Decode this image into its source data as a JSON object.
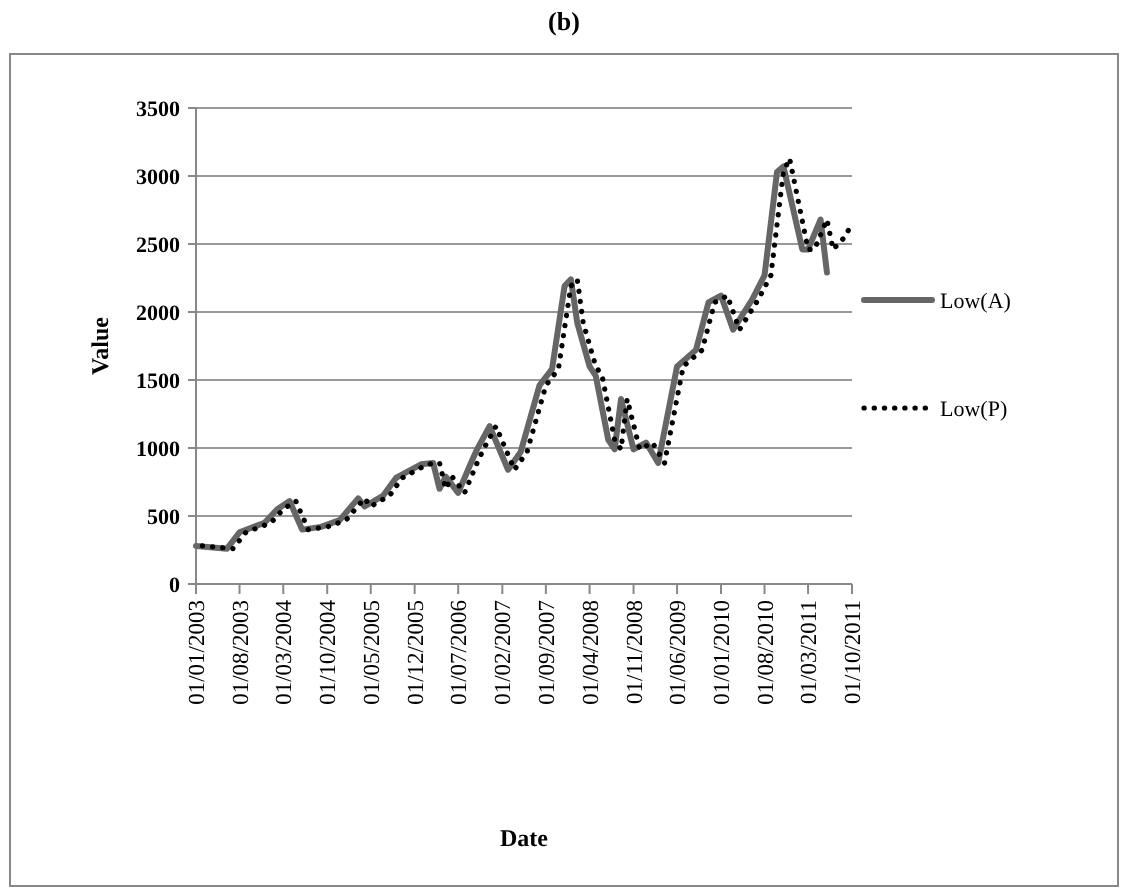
{
  "chart_data": {
    "type": "line",
    "title": "(b)",
    "xlabel": "Date",
    "ylabel": "Value",
    "legend": "right",
    "grid": "y",
    "xlim": [
      "2003-01",
      "2011-10"
    ],
    "xticks": [
      {
        "value": "2003-01",
        "label": "01/01/2003"
      },
      {
        "value": "2003-08",
        "label": "01/08/2003"
      },
      {
        "value": "2004-03",
        "label": "01/03/2004"
      },
      {
        "value": "2004-10",
        "label": "01/10/2004"
      },
      {
        "value": "2005-05",
        "label": "01/05/2005"
      },
      {
        "value": "2005-12",
        "label": "01/12/2005"
      },
      {
        "value": "2006-07",
        "label": "01/07/2006"
      },
      {
        "value": "2007-02",
        "label": "01/02/2007"
      },
      {
        "value": "2007-09",
        "label": "01/09/2007"
      },
      {
        "value": "2008-04",
        "label": "01/04/2008"
      },
      {
        "value": "2008-11",
        "label": "01/11/2008"
      },
      {
        "value": "2009-06",
        "label": "01/06/2009"
      },
      {
        "value": "2010-01",
        "label": "01/01/2010"
      },
      {
        "value": "2010-08",
        "label": "01/08/2010"
      },
      {
        "value": "2011-03",
        "label": "01/03/2011"
      },
      {
        "value": "2011-10",
        "label": "01/10/2011"
      }
    ],
    "ylim": [
      0,
      3500
    ],
    "yticks": [
      0,
      500,
      1000,
      1500,
      2000,
      2500,
      3000,
      3500
    ],
    "series": [
      {
        "name": "Low(A)",
        "color": "#666666",
        "line_style": "solid",
        "x": [
          "2003-01",
          "2003-06",
          "2003-08",
          "2003-12",
          "2004-02",
          "2004-04",
          "2004-06",
          "2004-09",
          "2004-12",
          "2005-03",
          "2005-04",
          "2005-07",
          "2005-09",
          "2006-01",
          "2006-03",
          "2006-04",
          "2006-05",
          "2006-07",
          "2006-09",
          "2006-10",
          "2006-12",
          "2007-03",
          "2007-05",
          "2007-08",
          "2007-10",
          "2007-12",
          "2008-01",
          "2008-02",
          "2008-04",
          "2008-05",
          "2008-07",
          "2008-08",
          "2008-09",
          "2008-11",
          "2009-01",
          "2009-03",
          "2009-06",
          "2009-09",
          "2009-11",
          "2010-01",
          "2010-03",
          "2010-06",
          "2010-08",
          "2010-10",
          "2010-11",
          "2011-02",
          "2011-03",
          "2011-05",
          "2011-06"
        ],
        "values": [
          280,
          260,
          380,
          450,
          550,
          610,
          400,
          420,
          470,
          630,
          570,
          650,
          780,
          880,
          890,
          700,
          790,
          670,
          890,
          990,
          1160,
          840,
          970,
          1460,
          1580,
          2190,
          2240,
          1920,
          1600,
          1530,
          1060,
          990,
          1360,
          990,
          1040,
          890,
          1600,
          1720,
          2070,
          2120,
          1870,
          2090,
          2270,
          3030,
          3070,
          2460,
          2460,
          2680,
          2290
        ]
      },
      {
        "name": "Low(P)",
        "color": "#000000",
        "line_style": "dotted",
        "x": [
          "2003-02",
          "2003-07",
          "2003-09",
          "2004-01",
          "2004-03",
          "2004-05",
          "2004-07",
          "2004-10",
          "2005-01",
          "2005-04",
          "2005-05",
          "2005-08",
          "2005-10",
          "2006-02",
          "2006-04",
          "2006-05",
          "2006-06",
          "2006-08",
          "2006-10",
          "2006-11",
          "2007-01",
          "2007-04",
          "2007-06",
          "2007-09",
          "2007-11",
          "2008-01",
          "2008-02",
          "2008-03",
          "2008-05",
          "2008-06",
          "2008-08",
          "2008-09",
          "2008-10",
          "2008-12",
          "2009-02",
          "2009-04",
          "2009-07",
          "2009-10",
          "2009-12",
          "2010-02",
          "2010-04",
          "2010-07",
          "2010-09",
          "2010-11",
          "2010-12",
          "2011-03",
          "2011-04",
          "2011-06",
          "2011-07",
          "2011-09",
          "2011-10"
        ],
        "values": [
          280,
          260,
          380,
          450,
          550,
          610,
          400,
          420,
          470,
          630,
          570,
          650,
          780,
          880,
          890,
          700,
          790,
          670,
          890,
          990,
          1160,
          840,
          970,
          1460,
          1580,
          2190,
          2240,
          1920,
          1600,
          1530,
          1060,
          990,
          1360,
          990,
          1040,
          890,
          1600,
          1720,
          2070,
          2120,
          1870,
          2090,
          2270,
          3030,
          3130,
          2460,
          2460,
          2680,
          2460,
          2560,
          2660
        ]
      }
    ]
  }
}
